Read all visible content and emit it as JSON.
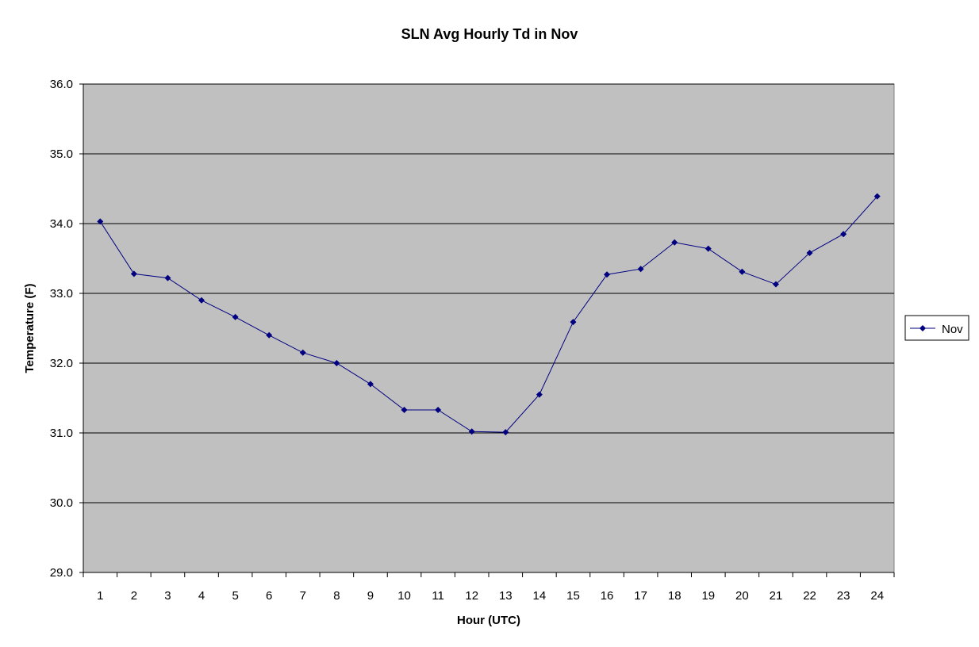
{
  "chart_data": {
    "type": "line",
    "title": "SLN Avg Hourly Td in Nov",
    "xlabel": "Hour (UTC)",
    "ylabel": "Temperature (F)",
    "categories": [
      "1",
      "2",
      "3",
      "4",
      "5",
      "6",
      "7",
      "8",
      "9",
      "10",
      "11",
      "12",
      "13",
      "14",
      "15",
      "16",
      "17",
      "18",
      "19",
      "20",
      "21",
      "22",
      "23",
      "24"
    ],
    "series": [
      {
        "name": "Nov",
        "color": "#000080",
        "values": [
          34.03,
          33.28,
          33.22,
          32.9,
          32.66,
          32.4,
          32.15,
          32.0,
          31.7,
          31.33,
          31.33,
          31.02,
          31.01,
          31.55,
          32.59,
          33.27,
          33.35,
          33.73,
          33.64,
          33.31,
          33.13,
          33.58,
          33.85,
          34.39
        ]
      }
    ],
    "ylim": [
      29.0,
      36.0
    ],
    "yticks": [
      "29.0",
      "30.0",
      "31.0",
      "32.0",
      "33.0",
      "34.0",
      "35.0",
      "36.0"
    ],
    "grid": true,
    "legend": "right",
    "plot_background": "#c0c0c0"
  }
}
